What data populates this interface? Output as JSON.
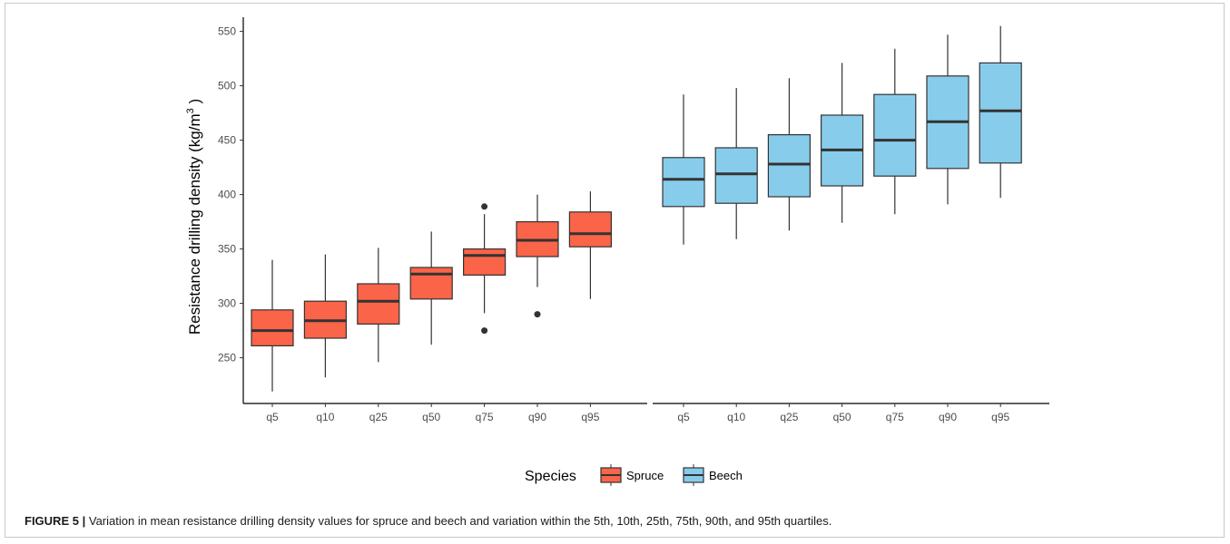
{
  "figure": {
    "label": "FIGURE 5",
    "separator": "|",
    "caption_text": "Variation in mean resistance drilling density values for spruce and beech and variation within the 5th, 10th, 25th, 75th, 90th, and 95th quartiles."
  },
  "chart_data": {
    "type": "box",
    "ylabel": "Resistance drilling density (kg/m",
    "ylabel_superscript": "3",
    "ylabel_suffix": " )",
    "ylim": [
      208,
      563
    ],
    "yticks": [
      250,
      300,
      350,
      400,
      450,
      500,
      550
    ],
    "legend": {
      "title": "Species",
      "position": "bottom",
      "entries": [
        {
          "name": "Spruce",
          "color": "#FA6449"
        },
        {
          "name": "Beech",
          "color": "#87CDEB"
        }
      ]
    },
    "panels": [
      {
        "species": "Spruce",
        "color": "#FA6449",
        "categories": [
          "q5",
          "q10",
          "q25",
          "q50",
          "q75",
          "q90",
          "q95"
        ],
        "boxes": [
          {
            "whisker_low": 219,
            "q1": 261,
            "median": 275,
            "q3": 294,
            "whisker_high": 340,
            "outliers": []
          },
          {
            "whisker_low": 232,
            "q1": 268,
            "median": 284,
            "q3": 302,
            "whisker_high": 345,
            "outliers": []
          },
          {
            "whisker_low": 246,
            "q1": 281,
            "median": 302,
            "q3": 318,
            "whisker_high": 351,
            "outliers": []
          },
          {
            "whisker_low": 262,
            "q1": 304,
            "median": 327,
            "q3": 333,
            "whisker_high": 366,
            "outliers": []
          },
          {
            "whisker_low": 291,
            "q1": 326,
            "median": 344,
            "q3": 350,
            "whisker_high": 382,
            "outliers": [
              389,
              275
            ]
          },
          {
            "whisker_low": 315,
            "q1": 343,
            "median": 358,
            "q3": 375,
            "whisker_high": 400,
            "outliers": [
              290
            ]
          },
          {
            "whisker_low": 304,
            "q1": 352,
            "median": 364,
            "q3": 384,
            "whisker_high": 403,
            "outliers": []
          }
        ]
      },
      {
        "species": "Beech",
        "color": "#87CDEB",
        "categories": [
          "q5",
          "q10",
          "q25",
          "q50",
          "q75",
          "q90",
          "q95"
        ],
        "boxes": [
          {
            "whisker_low": 354,
            "q1": 389,
            "median": 414,
            "q3": 434,
            "whisker_high": 492,
            "outliers": []
          },
          {
            "whisker_low": 359,
            "q1": 392,
            "median": 419,
            "q3": 443,
            "whisker_high": 498,
            "outliers": []
          },
          {
            "whisker_low": 367,
            "q1": 398,
            "median": 428,
            "q3": 455,
            "whisker_high": 507,
            "outliers": []
          },
          {
            "whisker_low": 374,
            "q1": 408,
            "median": 441,
            "q3": 473,
            "whisker_high": 521,
            "outliers": []
          },
          {
            "whisker_low": 382,
            "q1": 417,
            "median": 450,
            "q3": 492,
            "whisker_high": 534,
            "outliers": []
          },
          {
            "whisker_low": 391,
            "q1": 424,
            "median": 467,
            "q3": 509,
            "whisker_high": 547,
            "outliers": []
          },
          {
            "whisker_low": 397,
            "q1": 429,
            "median": 477,
            "q3": 521,
            "whisker_high": 555,
            "outliers": []
          }
        ]
      }
    ]
  }
}
